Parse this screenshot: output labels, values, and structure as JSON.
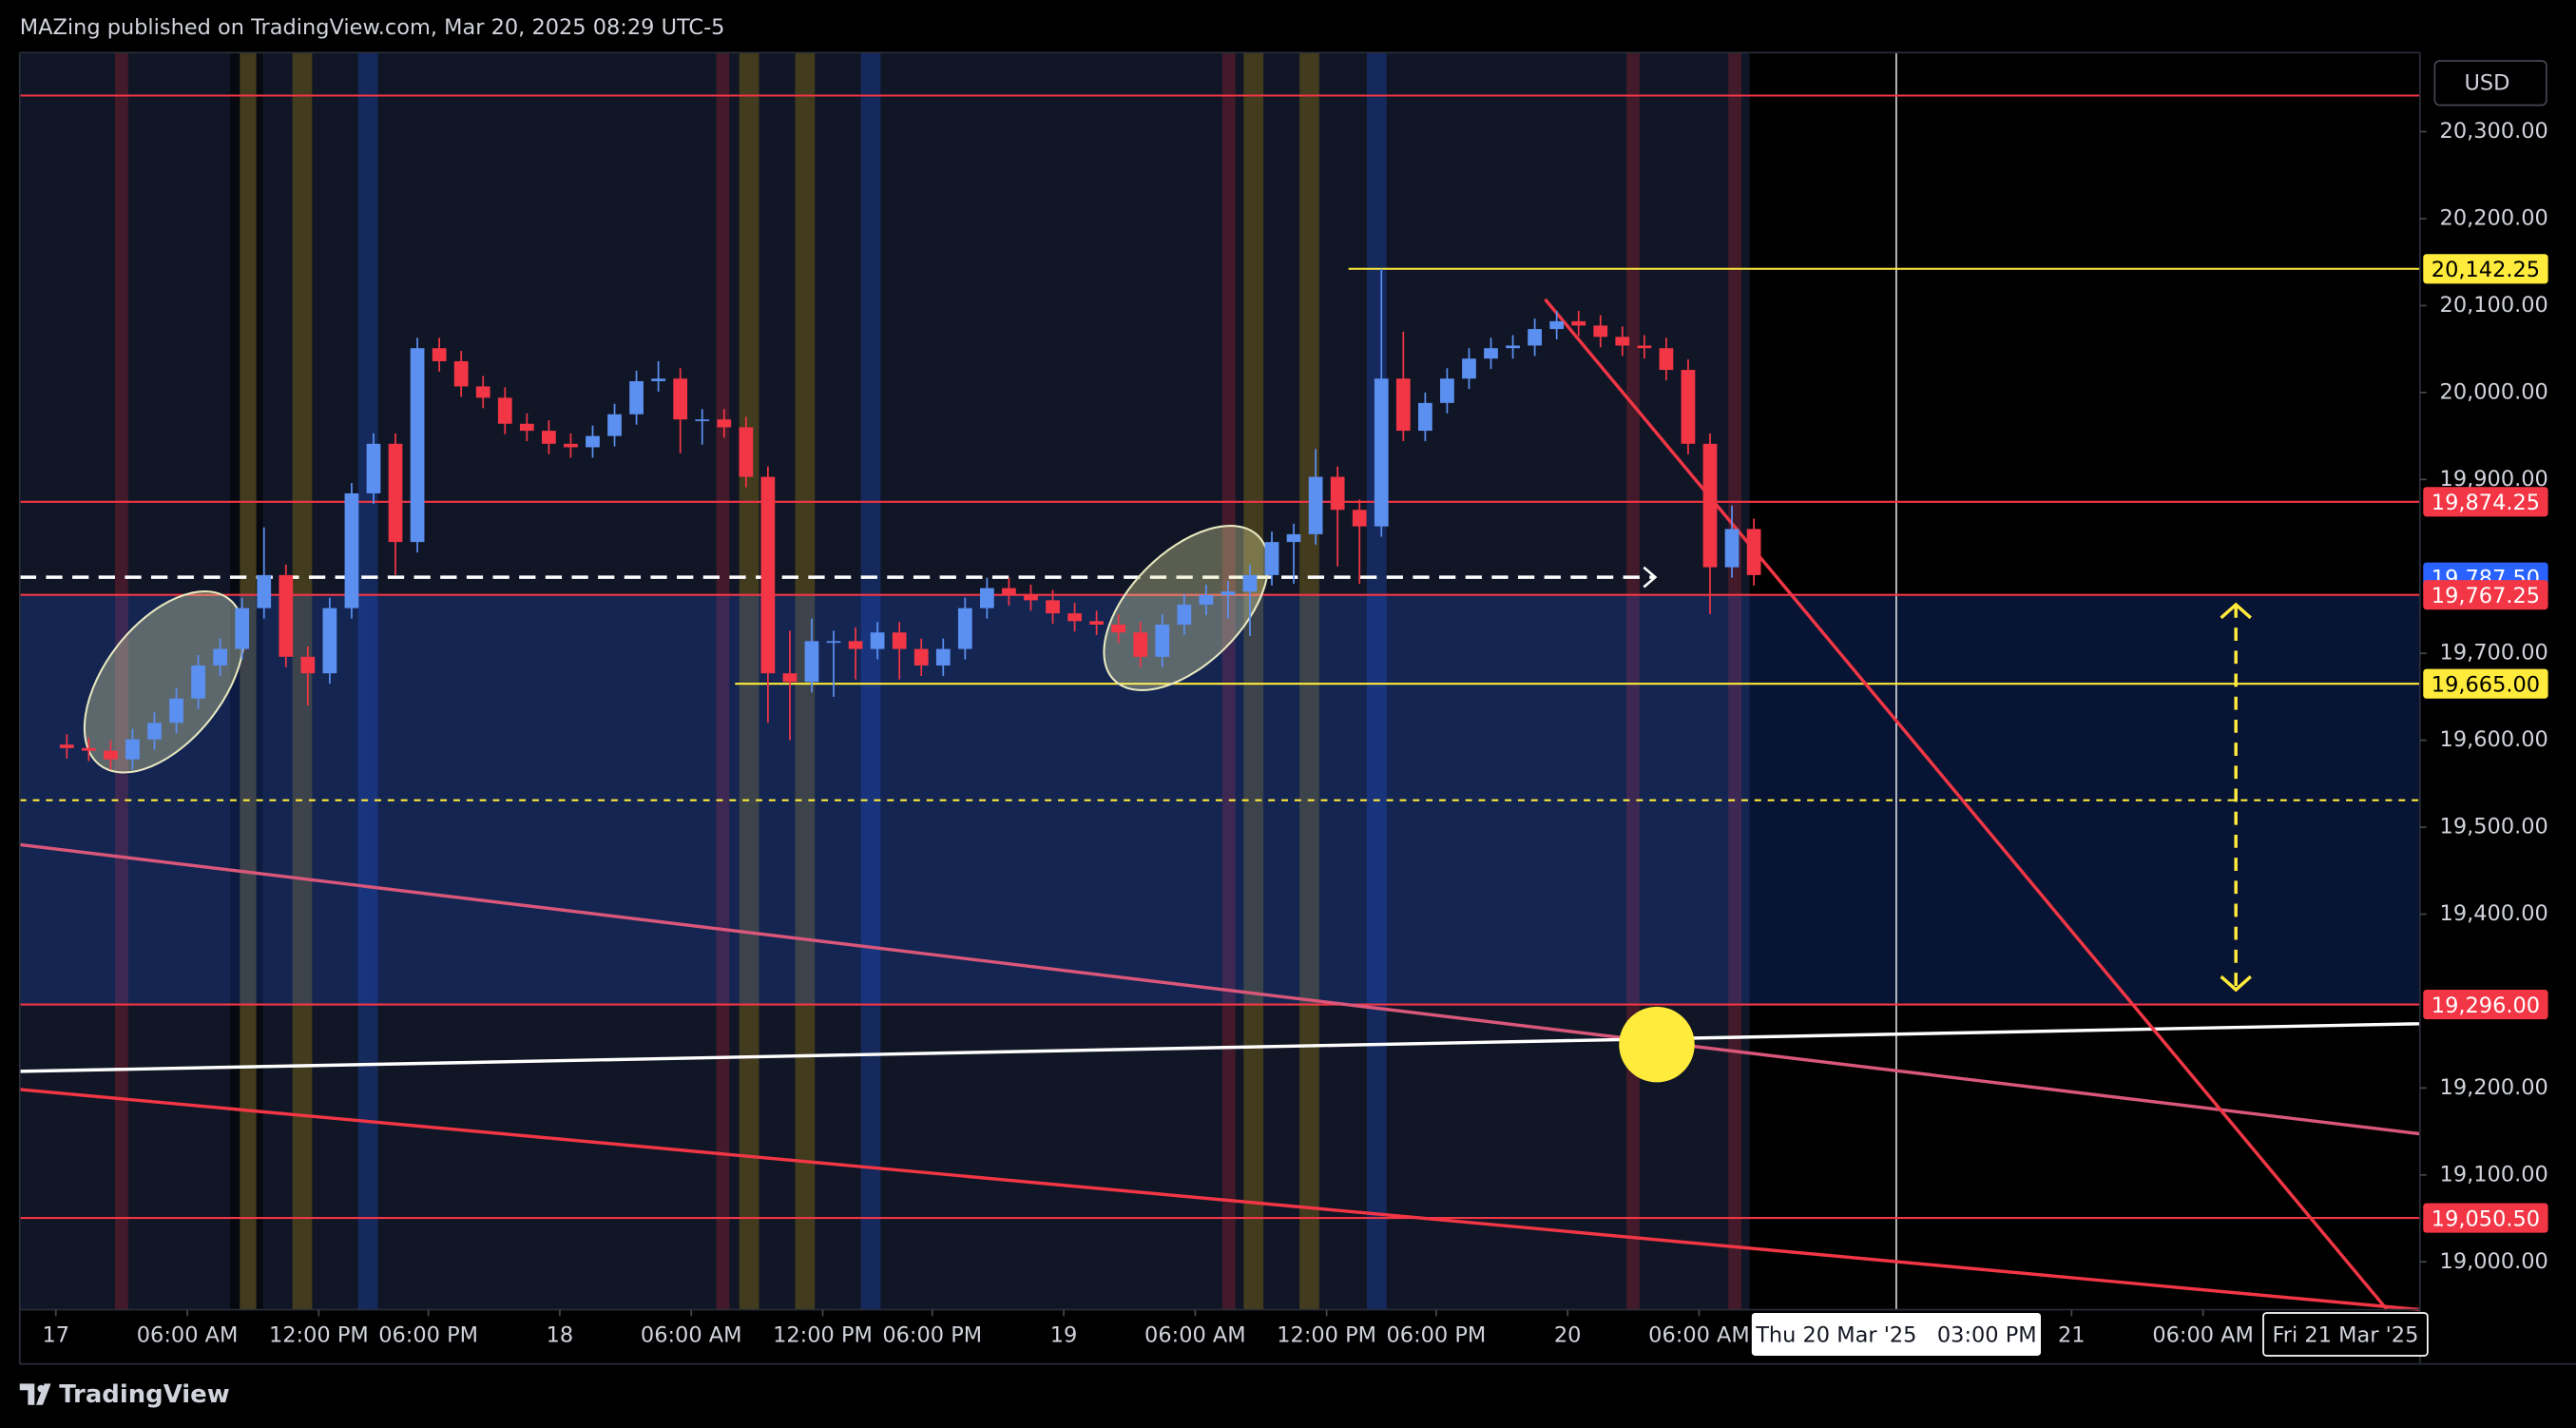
{
  "chart_data": {
    "type": "candlestick",
    "header": "MAZing published on TradingView.com, Mar 20, 2025 08:29 UTC-5",
    "currency": "USD",
    "brand": "TradingView",
    "up_color": "#5b8ff0",
    "down_color": "#f23645",
    "xlim": [
      -1.65,
      107.9
    ],
    "ylim": [
      18945,
      20391
    ],
    "xticks": [
      {
        "value": 0,
        "label": "17"
      },
      {
        "value": 6,
        "label": "06:00 AM"
      },
      {
        "value": 12,
        "label": "12:00 PM"
      },
      {
        "value": 17,
        "label": "06:00 PM"
      },
      {
        "value": 23,
        "label": "18"
      },
      {
        "value": 29,
        "label": "06:00 AM"
      },
      {
        "value": 35,
        "label": "12:00 PM"
      },
      {
        "value": 40,
        "label": "06:00 PM"
      },
      {
        "value": 46,
        "label": "19"
      },
      {
        "value": 52,
        "label": "06:00 AM"
      },
      {
        "value": 58,
        "label": "12:00 PM"
      },
      {
        "value": 63,
        "label": "06:00 PM"
      },
      {
        "value": 69,
        "label": "20"
      },
      {
        "value": 75,
        "label": "06:00 AM"
      },
      {
        "value": 92,
        "label": "21"
      },
      {
        "value": 98,
        "label": "06:00 AM"
      }
    ],
    "yticks": [
      {
        "value": 20300,
        "label": "20,300.00"
      },
      {
        "value": 20200,
        "label": "20,200.00"
      },
      {
        "value": 20100,
        "label": "20,100.00"
      },
      {
        "value": 20000,
        "label": "20,000.00"
      },
      {
        "value": 19900,
        "label": "19,900.00"
      },
      {
        "value": 19700,
        "label": "19,700.00"
      },
      {
        "value": 19600,
        "label": "19,600.00"
      },
      {
        "value": 19500,
        "label": "19,500.00"
      },
      {
        "value": 19400,
        "label": "19,400.00"
      },
      {
        "value": 19200,
        "label": "19,200.00"
      },
      {
        "value": 19100,
        "label": "19,100.00"
      },
      {
        "value": 19000,
        "label": "19,000.00"
      }
    ],
    "crosshair": {
      "x": 84,
      "label": "Thu 20 Mar '25   03:00 PM"
    },
    "end_label": {
      "x": 104.5,
      "label": "Fri 21 Mar '25"
    },
    "zone": {
      "from": 19767.25,
      "to": 19296,
      "color": "#2962ff"
    },
    "price_lines": [
      {
        "value": 20341.6,
        "color": "#f23645"
      },
      {
        "value": 20142.25,
        "label": "20,142.25",
        "color": "#ffeb3b",
        "x_from": 59
      },
      {
        "value": 19874.25,
        "label": "19,874.25",
        "color": "#f23645"
      },
      {
        "value": 19787.5,
        "label": "19,787.50",
        "color": "#ffffff",
        "dashed": true,
        "x_to": 73
      },
      {
        "value": 19767.25,
        "label": "19,767.25",
        "color": "#f23645"
      },
      {
        "value": 19665,
        "label": "19,665.00",
        "color": "#ffeb3b",
        "x_from": 31
      },
      {
        "value": 19531,
        "color": "#ffeb3b",
        "dashed": true
      },
      {
        "value": 19296,
        "label": "19,296.00",
        "color": "#f23645"
      },
      {
        "value": 19050.5,
        "label": "19,050.50",
        "color": "#f23645"
      }
    ],
    "trendlines": [
      {
        "x": [
          -1.65,
          107.9
        ],
        "y": [
          19479.9,
          19147.3
        ],
        "color": "#d9577a"
      },
      {
        "x": [
          -1.65,
          107.9
        ],
        "y": [
          19198.3,
          18945
        ],
        "color": "#f23645"
      },
      {
        "x": [
          -1.65,
          107.9
        ],
        "y": [
          19219.1,
          19273.9
        ],
        "color": "#ffffff"
      },
      {
        "x": [
          67.97,
          106.4
        ],
        "y": [
          20107.3,
          18945
        ],
        "color": "#f23645"
      }
    ],
    "marker": {
      "x": 73.07,
      "y": 19250,
      "color": "#ffeb3b"
    },
    "arrow": {
      "x": 99.5,
      "y": [
        19756,
        19313
      ],
      "color": "#ffeb3b"
    },
    "x": [
      0,
      1,
      2,
      3,
      4,
      5,
      6,
      7,
      8,
      9,
      10,
      11,
      12,
      13,
      14,
      15,
      16,
      17,
      18,
      19,
      20,
      21,
      22,
      23,
      24,
      25,
      26,
      27,
      28,
      29,
      30,
      31,
      32,
      33,
      34,
      35,
      36,
      37,
      38,
      39,
      40,
      41,
      42,
      43,
      44,
      45,
      46,
      47,
      48,
      49,
      50,
      51,
      52,
      53,
      54,
      55,
      56,
      57,
      58,
      59,
      60,
      61,
      62,
      63,
      64,
      65,
      66,
      67,
      68,
      69,
      70,
      71,
      72,
      73,
      74,
      75,
      76,
      77
    ],
    "candles": [
      [
        19595,
        19607,
        19579,
        19591
      ],
      [
        19591,
        19603,
        19576,
        19588
      ],
      [
        19588,
        19600,
        19566,
        19578
      ],
      [
        19578,
        19613,
        19566,
        19601
      ],
      [
        19601,
        19632,
        19589,
        19620
      ],
      [
        19620,
        19660,
        19608,
        19648
      ],
      [
        19648,
        19698,
        19636,
        19686
      ],
      [
        19686,
        19717,
        19674,
        19705
      ],
      [
        19705,
        19764,
        19693,
        19752
      ],
      [
        19752,
        19845,
        19740,
        19790
      ],
      [
        19790,
        19802,
        19684,
        19696
      ],
      [
        19696,
        19708,
        19640,
        19677
      ],
      [
        19677,
        19764,
        19665,
        19752
      ],
      [
        19752,
        19896,
        19740,
        19884
      ],
      [
        19884,
        19953,
        19872,
        19941
      ],
      [
        19941,
        19953,
        19790,
        19828
      ],
      [
        19828,
        20063,
        19816,
        20051
      ],
      [
        20051,
        20063,
        20024,
        20036
      ],
      [
        20036,
        20048,
        19995,
        20007
      ],
      [
        20007,
        20019,
        19982,
        19994
      ],
      [
        19994,
        20006,
        19952,
        19964
      ],
      [
        19964,
        19976,
        19944,
        19956
      ],
      [
        19956,
        19968,
        19929,
        19941
      ],
      [
        19941,
        19953,
        19925,
        19937
      ],
      [
        19937,
        19962,
        19925,
        19950
      ],
      [
        19950,
        19987,
        19938,
        19975
      ],
      [
        19975,
        20025,
        19963,
        20013
      ],
      [
        20013,
        20036,
        20001,
        20016
      ],
      [
        20016,
        20028,
        19930,
        19969
      ],
      [
        19969,
        19981,
        19940,
        19969
      ],
      [
        19969,
        19981,
        19948,
        19960
      ],
      [
        19960,
        19972,
        19891,
        19903
      ],
      [
        19903,
        19915,
        19620,
        19677
      ],
      [
        19677,
        19726,
        19600,
        19667
      ],
      [
        19667,
        19740,
        19655,
        19714
      ],
      [
        19714,
        19726,
        19650,
        19714
      ],
      [
        19714,
        19730,
        19670,
        19705
      ],
      [
        19705,
        19736,
        19693,
        19724
      ],
      [
        19724,
        19736,
        19670,
        19705
      ],
      [
        19705,
        19717,
        19674,
        19686
      ],
      [
        19686,
        19717,
        19674,
        19705
      ],
      [
        19705,
        19764,
        19693,
        19752
      ],
      [
        19752,
        19787,
        19740,
        19775
      ],
      [
        19775,
        19787,
        19755,
        19767
      ],
      [
        19767,
        19779,
        19749,
        19761
      ],
      [
        19761,
        19773,
        19734,
        19746
      ],
      [
        19746,
        19758,
        19725,
        19737
      ],
      [
        19737,
        19749,
        19721,
        19733
      ],
      [
        19733,
        19745,
        19712,
        19724
      ],
      [
        19724,
        19736,
        19684,
        19696
      ],
      [
        19696,
        19745,
        19684,
        19733
      ],
      [
        19733,
        19768,
        19721,
        19756
      ],
      [
        19756,
        19779,
        19744,
        19767
      ],
      [
        19767,
        19783,
        19740,
        19771
      ],
      [
        19771,
        19802,
        19720,
        19790
      ],
      [
        19790,
        19840,
        19778,
        19828
      ],
      [
        19828,
        19849,
        19780,
        19837
      ],
      [
        19837,
        19935,
        19825,
        19903
      ],
      [
        19903,
        19915,
        19800,
        19865
      ],
      [
        19865,
        19877,
        19780,
        19846
      ],
      [
        19846,
        20142.25,
        19834,
        20016
      ],
      [
        20016,
        20070,
        19944,
        19956
      ],
      [
        19956,
        20000,
        19944,
        19988
      ],
      [
        19988,
        20028,
        19976,
        20016
      ],
      [
        20016,
        20051,
        20004,
        20039
      ],
      [
        20039,
        20063,
        20027,
        20051
      ],
      [
        20051,
        20066,
        20039,
        20054
      ],
      [
        20054,
        20085,
        20042,
        20073
      ],
      [
        20073,
        20094,
        20061,
        20082
      ],
      [
        20082,
        20094,
        20065,
        20077
      ],
      [
        20077,
        20089,
        20052,
        20064
      ],
      [
        20064,
        20076,
        20042,
        20054
      ],
      [
        20054,
        20066,
        20039,
        20051
      ],
      [
        20051,
        20063,
        20014,
        20026
      ],
      [
        20026,
        20038,
        19929,
        19941
      ],
      [
        19941,
        19953,
        19745,
        19799
      ],
      [
        19799,
        19870,
        19787,
        19843
      ],
      [
        19843,
        19855,
        19778,
        19790
      ]
    ]
  }
}
